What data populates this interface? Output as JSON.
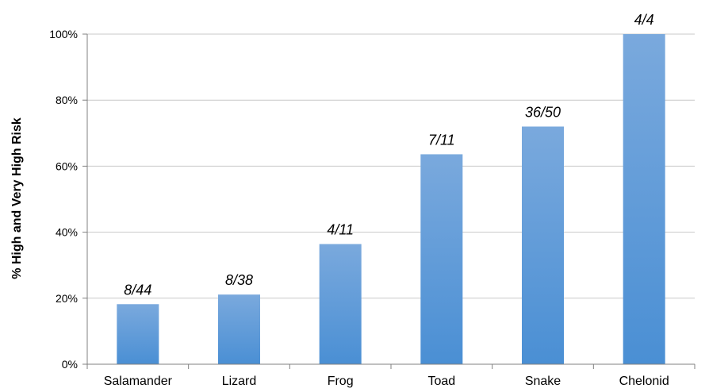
{
  "chart_data": {
    "type": "bar",
    "title": "",
    "xlabel": "",
    "ylabel": "% High and Very High Risk",
    "categories": [
      "Salamander",
      "Lizard",
      "Frog",
      "Toad",
      "Snake",
      "Chelonid"
    ],
    "values": [
      18.2,
      21.1,
      36.4,
      63.6,
      72,
      100
    ],
    "data_labels": [
      "8/44",
      "8/38",
      "4/11",
      "7/11",
      "36/50",
      "4/4"
    ],
    "ylim": [
      0,
      100
    ],
    "yticks": [
      0,
      20,
      40,
      60,
      80,
      100
    ],
    "ytick_labels": [
      "0%",
      "20%",
      "40%",
      "60%",
      "80%",
      "100%"
    ],
    "grid": true,
    "legend": "none",
    "colors": {
      "bar_top": "#7aa9dd",
      "bar_bottom": "#4a8fd4",
      "grid": "#c8c8c8",
      "axis": "#808080"
    }
  }
}
